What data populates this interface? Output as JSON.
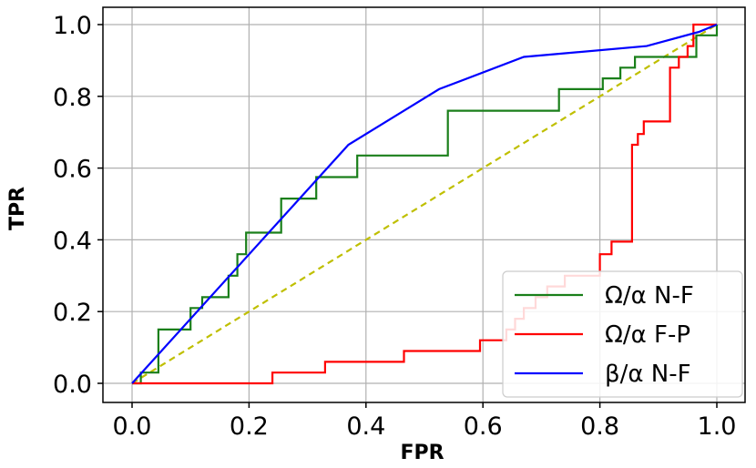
{
  "chart_data": {
    "type": "line",
    "xlabel": "FPR",
    "ylabel": "TPR",
    "xlim": [
      -0.05,
      1.05
    ],
    "ylim": [
      -0.05,
      1.03
    ],
    "x_ticks": [
      "0.0",
      "0.2",
      "0.4",
      "0.6",
      "0.8",
      "1.0"
    ],
    "y_ticks": [
      "0.0",
      "0.2",
      "0.4",
      "0.6",
      "0.8",
      "1.0"
    ],
    "grid": true,
    "legend_position": "lower-right",
    "series": [
      {
        "name": "Ω/α N-F",
        "color": "#1a7f1a",
        "style": "steps",
        "x": [
          0.0,
          0.015,
          0.015,
          0.045,
          0.045,
          0.1,
          0.1,
          0.12,
          0.12,
          0.165,
          0.165,
          0.18,
          0.18,
          0.195,
          0.195,
          0.255,
          0.255,
          0.315,
          0.315,
          0.385,
          0.385,
          0.54,
          0.54,
          0.73,
          0.73,
          0.805,
          0.805,
          0.835,
          0.835,
          0.86,
          0.86,
          0.89,
          0.89,
          0.965,
          0.965,
          0.985,
          0.985,
          1.0,
          1.0
        ],
        "y": [
          0.0,
          0.0,
          0.03,
          0.03,
          0.15,
          0.15,
          0.21,
          0.21,
          0.24,
          0.24,
          0.3,
          0.3,
          0.36,
          0.36,
          0.42,
          0.42,
          0.515,
          0.515,
          0.575,
          0.575,
          0.635,
          0.635,
          0.76,
          0.76,
          0.82,
          0.82,
          0.85,
          0.85,
          0.88,
          0.88,
          0.91,
          0.91,
          0.91,
          0.91,
          0.97,
          0.97,
          0.97,
          0.97,
          1.0
        ]
      },
      {
        "name": "Ω/α F-P",
        "color": "#ff0000",
        "style": "steps",
        "x": [
          0.0,
          0.24,
          0.24,
          0.33,
          0.33,
          0.465,
          0.465,
          0.595,
          0.595,
          0.64,
          0.64,
          0.655,
          0.655,
          0.67,
          0.67,
          0.69,
          0.69,
          0.71,
          0.71,
          0.74,
          0.74,
          0.8,
          0.8,
          0.82,
          0.82,
          0.84,
          0.84,
          0.855,
          0.855,
          0.865,
          0.865,
          0.875,
          0.875,
          0.92,
          0.92,
          0.935,
          0.935,
          0.95,
          0.95,
          0.96,
          0.96,
          0.97,
          0.97,
          1.0
        ],
        "y": [
          0.0,
          0.0,
          0.03,
          0.03,
          0.06,
          0.06,
          0.09,
          0.09,
          0.12,
          0.12,
          0.15,
          0.15,
          0.18,
          0.18,
          0.21,
          0.21,
          0.24,
          0.24,
          0.27,
          0.27,
          0.3,
          0.3,
          0.36,
          0.36,
          0.395,
          0.395,
          0.395,
          0.395,
          0.665,
          0.665,
          0.695,
          0.695,
          0.73,
          0.73,
          0.88,
          0.88,
          0.91,
          0.91,
          0.94,
          0.94,
          1.0,
          1.0,
          1.0,
          1.0
        ]
      },
      {
        "name": "β/α N-F",
        "color": "#0000ff",
        "style": "line",
        "x": [
          0.0,
          0.37,
          0.525,
          0.67,
          0.88,
          0.97,
          1.0
        ],
        "y": [
          0.0,
          0.665,
          0.82,
          0.91,
          0.94,
          0.98,
          1.0
        ]
      },
      {
        "color": "#bfbf00",
        "style": "dashed",
        "x": [
          0.0,
          1.0
        ],
        "y": [
          0.0,
          1.0
        ]
      }
    ]
  }
}
